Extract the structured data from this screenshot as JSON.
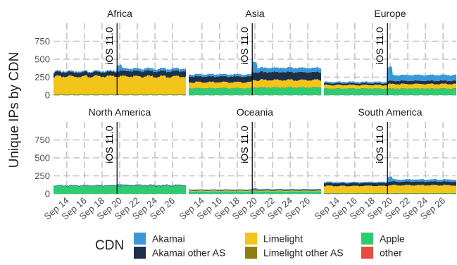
{
  "chart_data": {
    "type": "area",
    "layout": "facet-grid",
    "ylabel": "Unique IPs by CDN",
    "ylim": [
      0,
      1000
    ],
    "y_ticks": [
      0,
      250,
      500,
      750
    ],
    "x_ticks": [
      "Sep 14",
      "Sep 16",
      "Sep 18",
      "Sep 20",
      "Sep 22",
      "Sep 24",
      "Sep 26"
    ],
    "x_range_days": [
      12.5,
      27.5
    ],
    "event": {
      "label": "iOS 11.0",
      "x_day": 19.7
    },
    "grid": true,
    "legend": {
      "title": "CDN",
      "position": "bottom",
      "items": [
        {
          "name": "Akamai",
          "color": "#3a98d6"
        },
        {
          "name": "Akamai other AS",
          "color": "#1e3049"
        },
        {
          "name": "Limelight",
          "color": "#f3c419"
        },
        {
          "name": "Limelight other AS",
          "color": "#8f7d12"
        },
        {
          "name": "Apple",
          "color": "#2ecc71"
        },
        {
          "name": "other",
          "color": "#e74c3c"
        }
      ]
    },
    "stack_order": [
      "Apple",
      "Limelight other AS",
      "Limelight",
      "Akamai other AS",
      "Akamai"
    ],
    "facets": [
      {
        "name": "Africa",
        "series": [
          {
            "name": "Apple",
            "before": 5,
            "after": 5
          },
          {
            "name": "Limelight other AS",
            "before": 5,
            "after": 5
          },
          {
            "name": "Limelight",
            "before": 250,
            "after": 250
          },
          {
            "name": "Akamai other AS",
            "before": 60,
            "after": 75
          },
          {
            "name": "Akamai",
            "before": 15,
            "after": 35
          }
        ]
      },
      {
        "name": "Asia",
        "series": [
          {
            "name": "Apple",
            "before": 95,
            "after": 105
          },
          {
            "name": "Limelight other AS",
            "before": 5,
            "after": 5
          },
          {
            "name": "Limelight",
            "before": 80,
            "after": 100
          },
          {
            "name": "Akamai other AS",
            "before": 80,
            "after": 110
          },
          {
            "name": "Akamai",
            "before": 30,
            "after": 60
          }
        ]
      },
      {
        "name": "Europe",
        "series": [
          {
            "name": "Apple",
            "before": 90,
            "after": 90
          },
          {
            "name": "Limelight other AS",
            "before": 5,
            "after": 5
          },
          {
            "name": "Limelight",
            "before": 45,
            "after": 60
          },
          {
            "name": "Akamai other AS",
            "before": 25,
            "after": 45
          },
          {
            "name": "Akamai",
            "before": 20,
            "after": 80
          }
        ]
      },
      {
        "name": "North America",
        "series": [
          {
            "name": "Apple",
            "before": 110,
            "after": 110
          },
          {
            "name": "Limelight other AS",
            "before": 0,
            "after": 0
          },
          {
            "name": "Limelight",
            "before": 0,
            "after": 0
          },
          {
            "name": "Akamai other AS",
            "before": 5,
            "after": 5
          },
          {
            "name": "Akamai",
            "before": 5,
            "after": 10
          }
        ]
      },
      {
        "name": "Oceania",
        "series": [
          {
            "name": "Apple",
            "before": 35,
            "after": 35
          },
          {
            "name": "Limelight other AS",
            "before": 0,
            "after": 0
          },
          {
            "name": "Limelight",
            "before": 10,
            "after": 10
          },
          {
            "name": "Akamai other AS",
            "before": 10,
            "after": 12
          },
          {
            "name": "Akamai",
            "before": 5,
            "after": 8
          }
        ]
      },
      {
        "name": "South America",
        "series": [
          {
            "name": "Apple",
            "before": 5,
            "after": 5
          },
          {
            "name": "Limelight other AS",
            "before": 5,
            "after": 5
          },
          {
            "name": "Limelight",
            "before": 100,
            "after": 110
          },
          {
            "name": "Akamai other AS",
            "before": 40,
            "after": 50
          },
          {
            "name": "Akamai",
            "before": 15,
            "after": 30
          }
        ]
      }
    ]
  }
}
